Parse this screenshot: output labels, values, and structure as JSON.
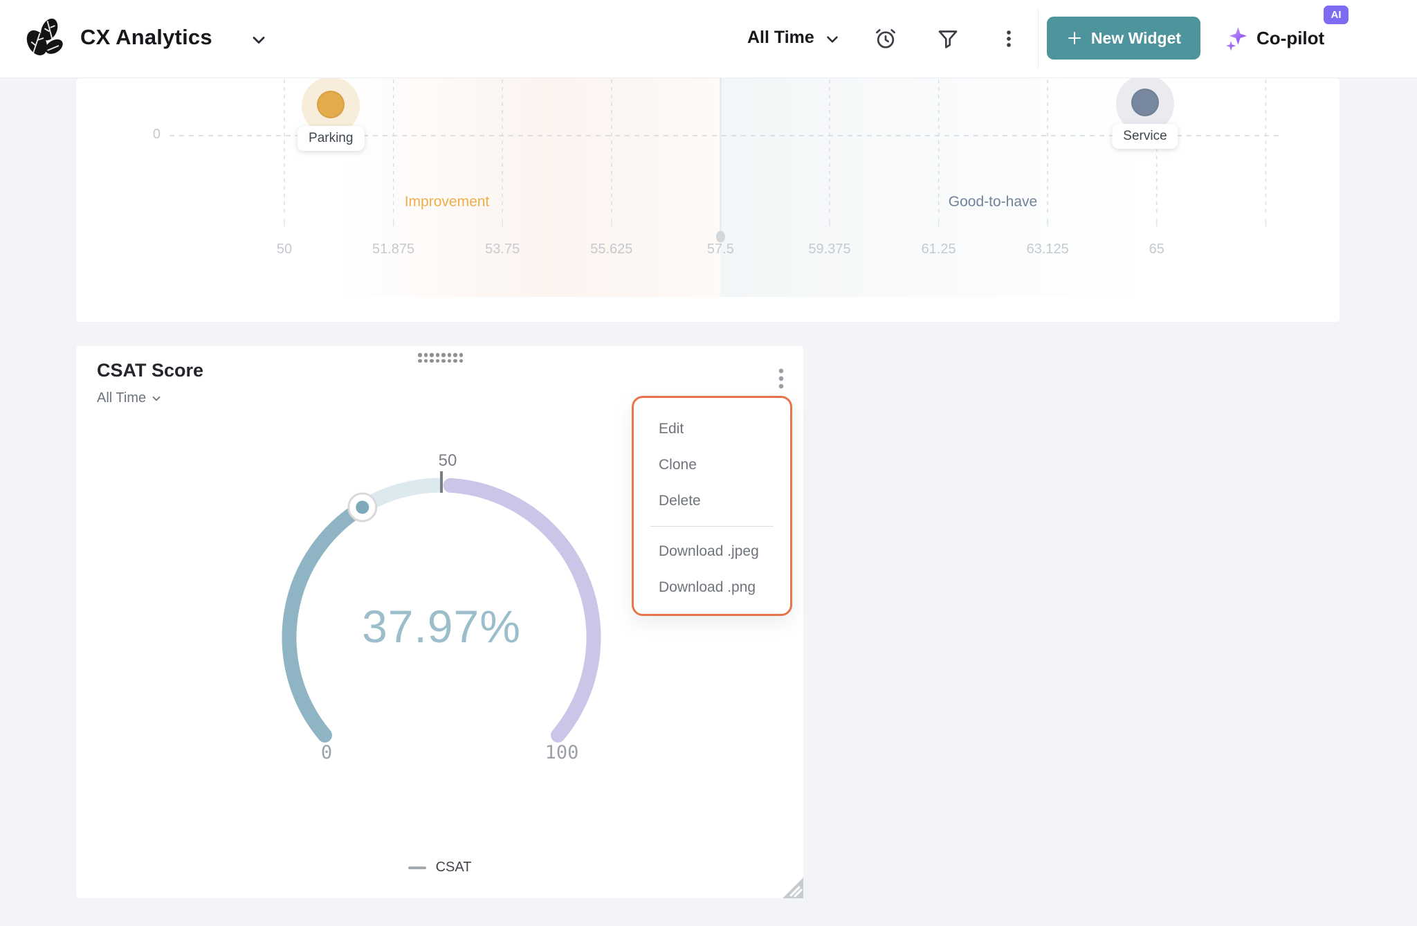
{
  "header": {
    "app_title": "CX Analytics",
    "time_filter": "All Time",
    "new_widget_label": "New Widget",
    "copilot_label": "Co-pilot",
    "ai_badge": "AI",
    "accent_teal": "#4E949C",
    "badge_purple": "#7D6BF2"
  },
  "csat_widget": {
    "title": "CSAT Score",
    "time_filter": "All Time",
    "legend_label": "CSAT",
    "menu": {
      "border_color": "#E8744B",
      "groups": [
        [
          "Edit",
          "Clone",
          "Delete"
        ],
        [
          "Download .jpeg",
          "Download .png"
        ]
      ]
    }
  },
  "chart_data": [
    {
      "type": "scatter",
      "title": "",
      "xlabel": "",
      "ylabel": "",
      "x_ticks": [
        50,
        51.875,
        53.75,
        55.625,
        57.5,
        59.375,
        61.25,
        63.125,
        65
      ],
      "x_tick_labels": [
        "50",
        "51.875",
        "53.75",
        "55.625",
        "57.5",
        "59.375",
        "61.25",
        "63.125",
        "65"
      ],
      "xlim": [
        50,
        65
      ],
      "y_zero_label": "0",
      "grid": "dashed",
      "divider_x": 57.5,
      "points": [
        {
          "label": "Parking",
          "x": 50.8,
          "y_relative": "above 0 line",
          "color": "#E4AB4C",
          "halo": "#F7EDDA"
        },
        {
          "label": "Service",
          "x": 64.8,
          "y_relative": "above 0 line",
          "color": "#76879F",
          "halo": "#E9EBEF"
        }
      ],
      "quadrants": [
        {
          "label": "Improvement",
          "color": "#EDAF4C"
        },
        {
          "label": "Good-to-have",
          "color": "#71829B"
        }
      ]
    },
    {
      "type": "gauge",
      "series": "CSAT",
      "value": 37.97,
      "value_display": "37.97%",
      "min": 0,
      "max": 100,
      "min_label": "0",
      "mid_label": "50",
      "max_label": "100",
      "start_angle": 220,
      "end_angle": -40,
      "colors": {
        "progress": "#8FB5C4",
        "remainder": "#DCE9EE",
        "upper": "#C9C6E8",
        "tick": "#7B7F84",
        "value_text": "#9CBECB",
        "handle_dot": "#7FA9BA",
        "axis_label": "#9CA1A8"
      }
    }
  ]
}
